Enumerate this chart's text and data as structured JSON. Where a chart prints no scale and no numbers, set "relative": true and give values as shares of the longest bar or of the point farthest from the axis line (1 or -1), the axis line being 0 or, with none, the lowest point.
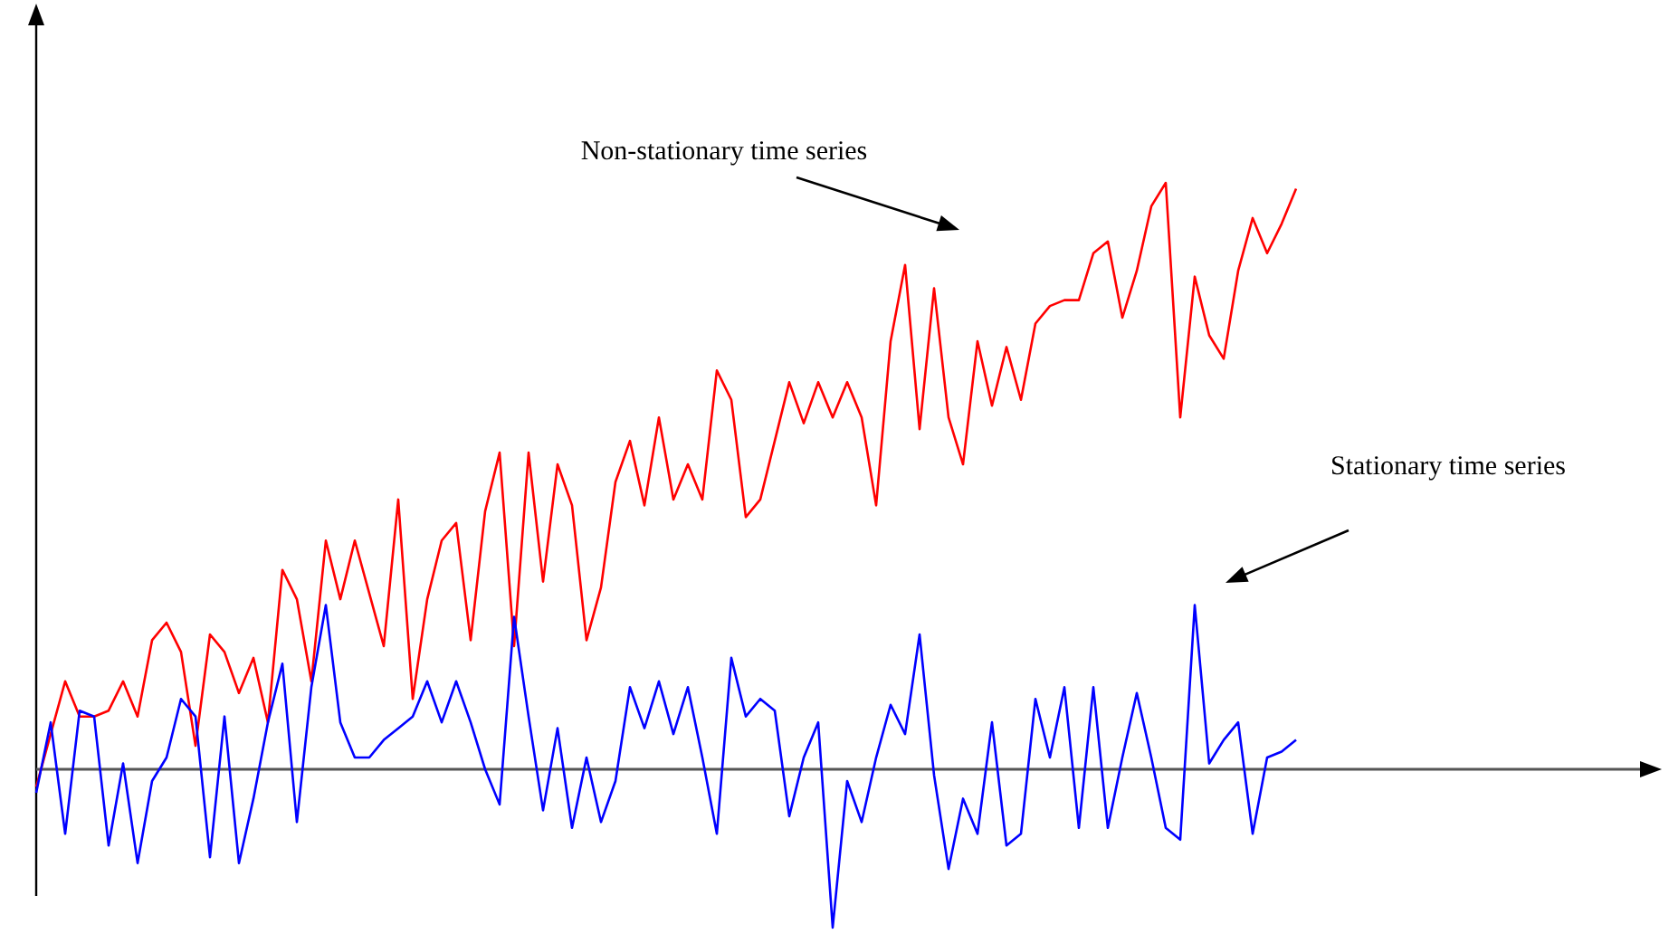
{
  "chart_data": {
    "type": "line",
    "relative": true,
    "categories": [
      null,
      null,
      null,
      null,
      null,
      null,
      null,
      null,
      null,
      null,
      null,
      null,
      null,
      null,
      null,
      null,
      null,
      null,
      null,
      null,
      null,
      null,
      null,
      null,
      null,
      null,
      null,
      null,
      null,
      null,
      null,
      null,
      null,
      null,
      null,
      null,
      null,
      null,
      null,
      null,
      null,
      null,
      null,
      null,
      null,
      null,
      null,
      null,
      null,
      null,
      null,
      null,
      null,
      null,
      null,
      null,
      null,
      null,
      null,
      null,
      null,
      null,
      null,
      null,
      null,
      null,
      null,
      null,
      null,
      null,
      null,
      null,
      null,
      null,
      null,
      null,
      null,
      null,
      null,
      null,
      null,
      null,
      null,
      null,
      null,
      null,
      null,
      null
    ],
    "series": [
      {
        "color": "#ff0000",
        "values": [
          -0.03,
          0.06,
          0.15,
          0.09,
          0.09,
          0.1,
          0.15,
          0.09,
          0.22,
          0.25,
          0.2,
          0.04,
          0.23,
          0.2,
          0.13,
          0.19,
          0.08,
          0.34,
          0.29,
          0.15,
          0.39,
          0.29,
          0.39,
          0.3,
          0.21,
          0.46,
          0.12,
          0.29,
          0.39,
          0.42,
          0.22,
          0.44,
          0.54,
          0.21,
          0.54,
          0.32,
          0.52,
          0.45,
          0.22,
          0.31,
          0.49,
          0.56,
          0.45,
          0.6,
          0.46,
          0.52,
          0.46,
          0.68,
          0.63,
          0.43,
          0.46,
          0.56,
          0.66,
          0.59,
          0.66,
          0.6,
          0.66,
          0.6,
          0.45,
          0.73,
          0.86,
          0.58,
          0.82,
          0.6,
          0.52,
          0.73,
          0.62,
          0.72,
          0.63,
          0.76,
          0.79,
          0.8,
          0.8,
          0.88,
          0.9,
          0.77,
          0.85,
          0.96,
          1.0,
          0.6,
          0.84,
          0.74,
          0.7,
          0.85,
          0.94,
          0.88,
          0.93,
          0.99
        ]
      },
      {
        "color": "#0000ff",
        "values": [
          -0.04,
          0.08,
          -0.11,
          0.1,
          0.09,
          -0.13,
          0.01,
          -0.16,
          -0.02,
          0.02,
          0.12,
          0.09,
          -0.15,
          0.09,
          -0.16,
          -0.05,
          0.08,
          0.18,
          -0.09,
          0.14,
          0.28,
          0.08,
          0.02,
          0.02,
          0.05,
          0.07,
          0.09,
          0.15,
          0.08,
          0.15,
          0.08,
          0.0,
          -0.06,
          0.26,
          0.09,
          -0.07,
          0.07,
          -0.1,
          0.02,
          -0.09,
          -0.02,
          0.14,
          0.07,
          0.15,
          0.06,
          0.14,
          0.02,
          -0.11,
          0.19,
          0.09,
          0.12,
          0.1,
          -0.08,
          0.02,
          0.08,
          -0.27,
          -0.02,
          -0.09,
          0.02,
          0.11,
          0.06,
          0.23,
          -0.01,
          -0.17,
          -0.05,
          -0.11,
          0.08,
          -0.13,
          -0.11,
          0.12,
          0.02,
          0.14,
          -0.1,
          0.14,
          -0.1,
          0.02,
          0.13,
          0.02,
          -0.1,
          -0.12,
          0.28,
          0.01,
          0.05,
          0.08,
          -0.11,
          0.02,
          0.03,
          0.05
        ]
      }
    ],
    "annotations": [
      "Non-stationary time series",
      "Stationary time series"
    ]
  }
}
